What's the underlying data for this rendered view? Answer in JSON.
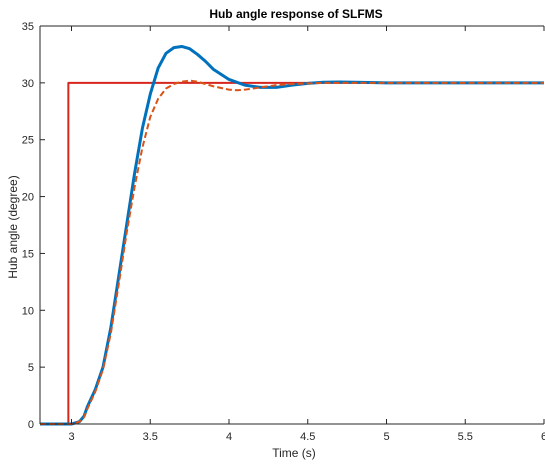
{
  "chart_data": {
    "type": "line",
    "title": "Hub angle response of SLFMS",
    "xlabel": "Time (s)",
    "ylabel": "Hub angle (degree)",
    "xlim": [
      2.8,
      6.0
    ],
    "ylim": [
      0,
      35
    ],
    "xticks": [
      3,
      3.5,
      4,
      4.5,
      5,
      5.5,
      6
    ],
    "xtick_labels": [
      "3",
      "3.5",
      "4",
      "4.5",
      "5",
      "5.5",
      "6"
    ],
    "yticks": [
      0,
      5,
      10,
      15,
      20,
      25,
      30,
      35
    ],
    "ytick_labels": [
      "0",
      "5",
      "10",
      "15",
      "20",
      "25",
      "30",
      "35"
    ],
    "grid": false,
    "series": [
      {
        "color": "#D7261E",
        "style": "solid",
        "x": [
          2.8,
          2.98,
          2.98,
          6.0
        ],
        "y": [
          0,
          0,
          30,
          30
        ]
      },
      {
        "color": "#0072BD",
        "style": "solid",
        "x": [
          2.8,
          3.0,
          3.05,
          3.08,
          3.1,
          3.15,
          3.2,
          3.25,
          3.3,
          3.35,
          3.4,
          3.45,
          3.5,
          3.55,
          3.6,
          3.65,
          3.7,
          3.75,
          3.8,
          3.85,
          3.9,
          4.0,
          4.1,
          4.2,
          4.3,
          4.4,
          4.5,
          4.6,
          4.7,
          4.8,
          5.0,
          5.5,
          6.0
        ],
        "y": [
          0,
          0,
          0.2,
          0.7,
          1.5,
          3.0,
          5.0,
          8.5,
          13.0,
          17.5,
          22.0,
          26.0,
          29.0,
          31.3,
          32.6,
          33.1,
          33.2,
          33.0,
          32.5,
          31.9,
          31.2,
          30.3,
          29.8,
          29.6,
          29.6,
          29.8,
          29.95,
          30.05,
          30.08,
          30.05,
          30.0,
          30.0,
          30.0
        ]
      },
      {
        "color": "#D95319",
        "style": "dashed",
        "x": [
          2.8,
          3.0,
          3.05,
          3.08,
          3.1,
          3.15,
          3.2,
          3.25,
          3.3,
          3.35,
          3.4,
          3.45,
          3.5,
          3.55,
          3.6,
          3.65,
          3.7,
          3.75,
          3.8,
          3.85,
          3.9,
          4.0,
          4.05,
          4.1,
          4.2,
          4.3,
          4.4,
          4.5,
          4.6,
          4.7,
          5.0,
          5.5,
          6.0
        ],
        "y": [
          0,
          0,
          0.2,
          0.6,
          1.3,
          2.8,
          4.8,
          8.0,
          12.3,
          16.8,
          20.8,
          24.3,
          27.0,
          28.6,
          29.5,
          29.9,
          30.1,
          30.2,
          30.1,
          29.9,
          29.7,
          29.4,
          29.35,
          29.4,
          29.6,
          29.8,
          29.9,
          29.95,
          30.0,
          30.0,
          30.0,
          30.0,
          30.0
        ]
      }
    ]
  }
}
